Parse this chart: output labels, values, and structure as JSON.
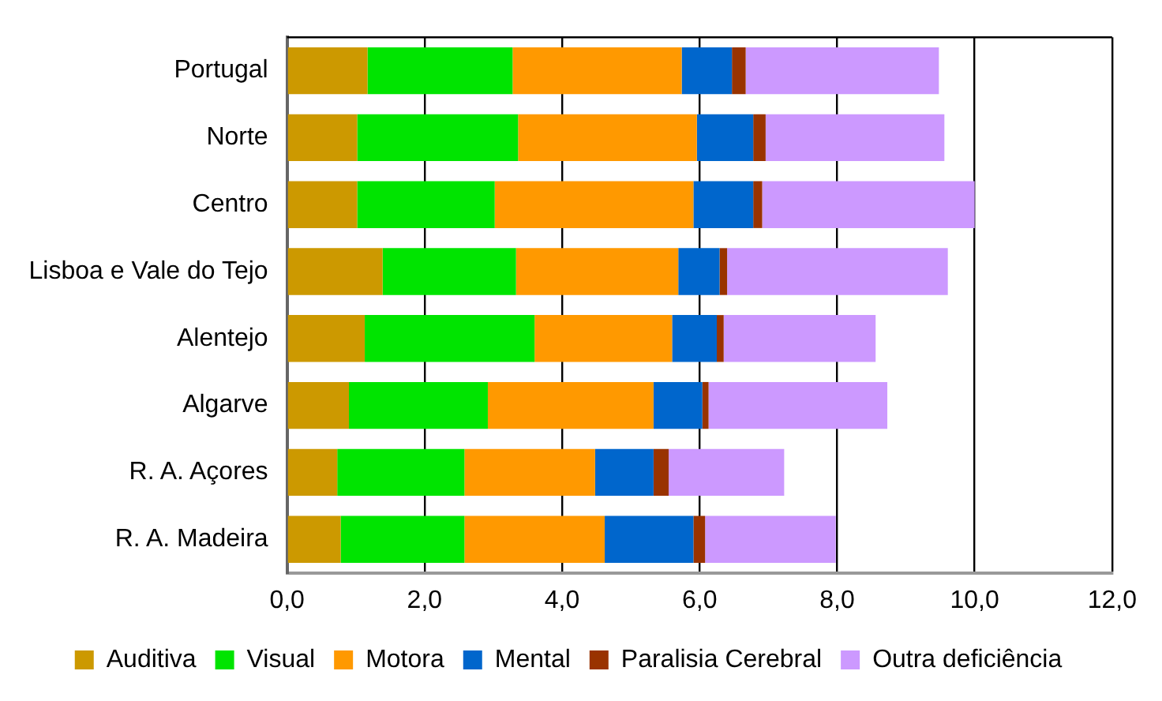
{
  "chart_data": {
    "type": "bar",
    "orientation": "horizontal",
    "stacked": true,
    "categories": [
      "Portugal",
      "Norte",
      "Centro",
      "Lisboa e Vale do Tejo",
      "Alentejo",
      "Algarve",
      "R. A. Açores",
      "R. A. Madeira"
    ],
    "series": [
      {
        "name": "Auditiva",
        "color": "#cc9900",
        "values": [
          1.17,
          1.02,
          1.02,
          1.39,
          1.13,
          0.9,
          0.73,
          0.78
        ]
      },
      {
        "name": "Visual",
        "color": "#00e400",
        "values": [
          2.11,
          2.34,
          2.0,
          1.94,
          2.47,
          2.02,
          1.85,
          1.8
        ]
      },
      {
        "name": "Motora",
        "color": "#ff9900",
        "values": [
          2.46,
          2.6,
          2.89,
          2.36,
          2.0,
          2.41,
          1.9,
          2.04
        ]
      },
      {
        "name": "Mental",
        "color": "#0066cc",
        "values": [
          0.73,
          0.82,
          0.87,
          0.6,
          0.65,
          0.71,
          0.85,
          1.29
        ]
      },
      {
        "name": "Paralisia Cerebral",
        "color": "#993300",
        "values": [
          0.2,
          0.18,
          0.13,
          0.11,
          0.1,
          0.09,
          0.22,
          0.17
        ]
      },
      {
        "name": "Outra deficiência",
        "color": "#cc99ff",
        "values": [
          2.81,
          2.6,
          3.09,
          3.21,
          2.21,
          2.6,
          1.68,
          1.9
        ]
      }
    ],
    "xlim": [
      0,
      12
    ],
    "xticks": [
      {
        "value": 0,
        "label": "0,0"
      },
      {
        "value": 2,
        "label": "2,0"
      },
      {
        "value": 4,
        "label": "4,0"
      },
      {
        "value": 6,
        "label": "6,0"
      },
      {
        "value": 8,
        "label": "8,0"
      },
      {
        "value": 10,
        "label": "10,0"
      },
      {
        "value": 12,
        "label": "12,0"
      }
    ],
    "grid": "x",
    "legend": "bottom"
  }
}
